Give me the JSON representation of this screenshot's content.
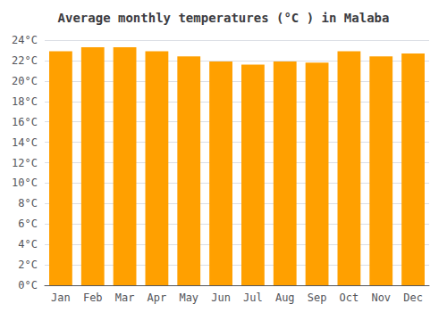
{
  "chart_data": {
    "type": "bar",
    "title": "Average monthly temperatures (°C ) in Malaba",
    "categories": [
      "Jan",
      "Feb",
      "Mar",
      "Apr",
      "May",
      "Jun",
      "Jul",
      "Aug",
      "Sep",
      "Oct",
      "Nov",
      "Dec"
    ],
    "values": [
      22.9,
      23.3,
      23.3,
      22.9,
      22.4,
      21.9,
      21.6,
      21.9,
      21.8,
      22.9,
      22.4,
      22.7
    ],
    "color": "#FFA000",
    "ylim": [
      0,
      24
    ],
    "yticks": [
      {
        "value": 0,
        "label": "0°C"
      },
      {
        "value": 2,
        "label": "2°C"
      },
      {
        "value": 4,
        "label": "4°C"
      },
      {
        "value": 6,
        "label": "6°C"
      },
      {
        "value": 8,
        "label": "8°C"
      },
      {
        "value": 10,
        "label": "10°C"
      },
      {
        "value": 12,
        "label": "12°C"
      },
      {
        "value": 14,
        "label": "14°C"
      },
      {
        "value": 16,
        "label": "16°C"
      },
      {
        "value": 18,
        "label": "18°C"
      },
      {
        "value": 20,
        "label": "20°C"
      },
      {
        "value": 22,
        "label": "22°C"
      },
      {
        "value": 24,
        "label": "24°C"
      }
    ],
    "grid": true
  }
}
